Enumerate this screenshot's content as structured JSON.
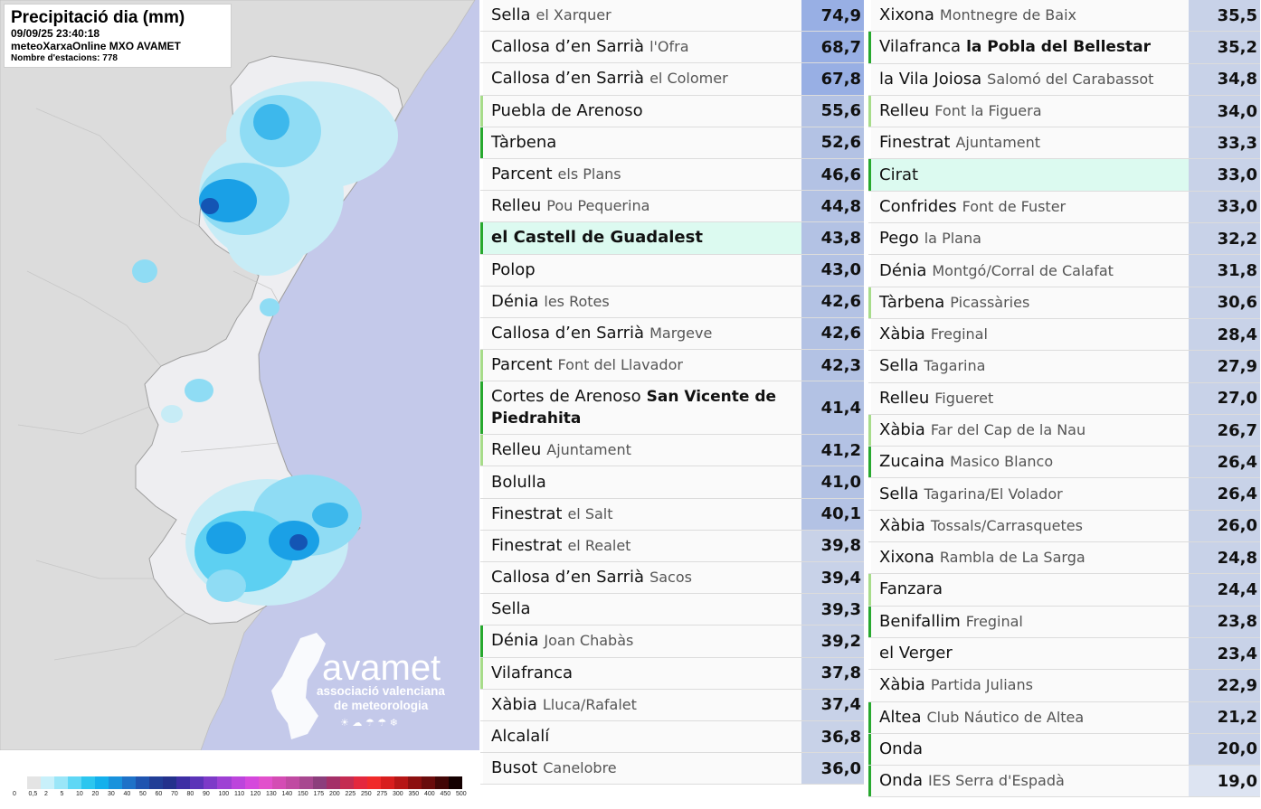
{
  "map": {
    "title": "Precipitació dia (mm)",
    "datetime": "09/09/25 23:40:18",
    "source": "meteoXarxaOnline MXO AVAMET",
    "stations": "Nombre d'estacions: 778",
    "logo_text": "avamet",
    "logo_sub1": "associació valenciana",
    "logo_sub2": "de meteorologia",
    "colors": {
      "sea": "#c4c9ea",
      "land": "#dcdcdc",
      "region": "#eeeef1",
      "rain_light": "#c7ecf6",
      "rain_mid": "#5dd0f2",
      "rain_strong": "#1aa0e6",
      "rain_heavy": "#1455b4"
    },
    "legend_colors": [
      "#ffffff",
      "#e4e4e4",
      "#c8f0fa",
      "#9ae6f8",
      "#5fd7f5",
      "#2cc6ef",
      "#14b0ec",
      "#1992dc",
      "#1e72c8",
      "#1f54b0",
      "#213e96",
      "#23318c",
      "#3d2ea4",
      "#5b34b8",
      "#7d3ac8",
      "#9e40d4",
      "#bc44dc",
      "#d548dc",
      "#e250cc",
      "#d44cb4",
      "#c04aa2",
      "#a84890",
      "#8c3e7c",
      "#a43068",
      "#c42c52",
      "#e4283e",
      "#f02a2a",
      "#d81e1e",
      "#b61616",
      "#8c1010",
      "#6a0c0c",
      "#420606",
      "#140000"
    ],
    "legend_labels": [
      "0",
      "0,5",
      "2",
      "5",
      "10",
      "20",
      "30",
      "40",
      "50",
      "60",
      "70",
      "80",
      "90",
      "100",
      "110",
      "120",
      "130",
      "140",
      "150",
      "175",
      "200",
      "225",
      "250",
      "275",
      "300",
      "350",
      "400",
      "450",
      "500"
    ]
  },
  "table_left": [
    {
      "primary": "Sella",
      "secondary": "el Xarquer",
      "value": "74,9",
      "mark": "none",
      "hl": false,
      "val_color": "#98afe4"
    },
    {
      "primary": "Callosa d’en Sarrià",
      "secondary": "l'Ofra",
      "value": "68,7",
      "mark": "none",
      "hl": false,
      "val_color": "#98afe4"
    },
    {
      "primary": "Callosa d’en Sarrià",
      "secondary": "el Colomer",
      "value": "67,8",
      "mark": "none",
      "hl": false,
      "val_color": "#98afe4"
    },
    {
      "primary": "Puebla de Arenoso",
      "secondary": "",
      "value": "55,6",
      "mark": "light",
      "hl": false,
      "val_color": "#b3c2e4"
    },
    {
      "primary": "Tàrbena",
      "secondary": "",
      "value": "52,6",
      "mark": "dark",
      "hl": false,
      "val_color": "#b3c2e4"
    },
    {
      "primary": "Parcent",
      "secondary": "els Plans",
      "value": "46,6",
      "mark": "none",
      "hl": false,
      "val_color": "#b3c2e4"
    },
    {
      "primary": "Relleu",
      "secondary": "Pou Pequerina",
      "value": "44,8",
      "mark": "none",
      "hl": false,
      "val_color": "#b3c2e4"
    },
    {
      "primary": "el Castell de Guadalest",
      "secondary": "",
      "value": "43,8",
      "mark": "dark",
      "hl": true,
      "bold": true,
      "val_color": "#b3c2e4"
    },
    {
      "primary": "Polop",
      "secondary": "",
      "value": "43,0",
      "mark": "none",
      "hl": false,
      "val_color": "#b3c2e4"
    },
    {
      "primary": "Dénia",
      "secondary": "les Rotes",
      "value": "42,6",
      "mark": "none",
      "hl": false,
      "val_color": "#b3c2e4"
    },
    {
      "primary": "Callosa d’en Sarrià",
      "secondary": "Margeve",
      "value": "42,6",
      "mark": "none",
      "hl": false,
      "val_color": "#b3c2e4"
    },
    {
      "primary": "Parcent",
      "secondary": "Font del Llavador",
      "value": "42,3",
      "mark": "light",
      "hl": false,
      "val_color": "#b3c2e4"
    },
    {
      "primary": "Cortes de Arenoso",
      "secondary": "San Vicente de Piedrahita",
      "value": "41,4",
      "mark": "dark",
      "hl": false,
      "sec_bold": true,
      "tall": true,
      "val_color": "#b3c2e4"
    },
    {
      "primary": "Relleu",
      "secondary": "Ajuntament",
      "value": "41,2",
      "mark": "light",
      "hl": false,
      "val_color": "#b3c2e4"
    },
    {
      "primary": "Bolulla",
      "secondary": "",
      "value": "41,0",
      "mark": "none",
      "hl": false,
      "val_color": "#b3c2e4"
    },
    {
      "primary": "Finestrat",
      "secondary": "el Salt",
      "value": "40,1",
      "mark": "none",
      "hl": false,
      "val_color": "#b3c2e4"
    },
    {
      "primary": "Finestrat",
      "secondary": "el Realet",
      "value": "39,8",
      "mark": "none",
      "hl": false,
      "val_color": "#c8d2e8"
    },
    {
      "primary": "Callosa d’en Sarrià",
      "secondary": "Sacos",
      "value": "39,4",
      "mark": "none",
      "hl": false,
      "val_color": "#c8d2e8"
    },
    {
      "primary": "Sella",
      "secondary": "",
      "value": "39,3",
      "mark": "none",
      "hl": false,
      "val_color": "#c8d2e8"
    },
    {
      "primary": "Dénia",
      "secondary": "Joan Chabàs",
      "value": "39,2",
      "mark": "dark",
      "hl": false,
      "val_color": "#c8d2e8"
    },
    {
      "primary": "Vilafranca",
      "secondary": "",
      "value": "37,8",
      "mark": "light",
      "hl": false,
      "val_color": "#c8d2e8"
    },
    {
      "primary": "Xàbia",
      "secondary": "Lluca/Rafalet",
      "value": "37,4",
      "mark": "none",
      "hl": false,
      "val_color": "#c8d2e8"
    },
    {
      "primary": "Alcalalí",
      "secondary": "",
      "value": "36,8",
      "mark": "none",
      "hl": false,
      "val_color": "#c8d2e8"
    },
    {
      "primary": "Busot",
      "secondary": "Canelobre",
      "value": "36,0",
      "mark": "none",
      "hl": false,
      "val_color": "#c8d2e8"
    }
  ],
  "table_right": [
    {
      "primary": "Xixona",
      "secondary": "Montnegre de Baix",
      "value": "35,5",
      "mark": "none",
      "hl": false,
      "val_color": "#c8d2e8"
    },
    {
      "primary": "Vilafranca",
      "secondary": "la Pobla del Bellestar",
      "value": "35,2",
      "mark": "dark",
      "hl": false,
      "sec_bold": true,
      "val_color": "#c8d2e8"
    },
    {
      "primary": "la Vila Joiosa",
      "secondary": "Salomó del Carabassot",
      "value": "34,8",
      "mark": "none",
      "hl": false,
      "val_color": "#c8d2e8"
    },
    {
      "primary": "Relleu",
      "secondary": "Font la Figuera",
      "value": "34,0",
      "mark": "light",
      "hl": false,
      "val_color": "#c8d2e8"
    },
    {
      "primary": "Finestrat",
      "secondary": "Ajuntament",
      "value": "33,3",
      "mark": "none",
      "hl": false,
      "val_color": "#c8d2e8"
    },
    {
      "primary": "Cirat",
      "secondary": "",
      "value": "33,0",
      "mark": "dark",
      "hl": true,
      "val_color": "#c8d2e8"
    },
    {
      "primary": "Confrides",
      "secondary": "Font de Fuster",
      "value": "33,0",
      "mark": "none",
      "hl": false,
      "val_color": "#c8d2e8"
    },
    {
      "primary": "Pego",
      "secondary": "la Plana",
      "value": "32,2",
      "mark": "none",
      "hl": false,
      "val_color": "#c8d2e8"
    },
    {
      "primary": "Dénia",
      "secondary": "Montgó/Corral de Calafat",
      "value": "31,8",
      "mark": "none",
      "hl": false,
      "val_color": "#c8d2e8"
    },
    {
      "primary": "Tàrbena",
      "secondary": "Picassàries",
      "value": "30,6",
      "mark": "light",
      "hl": false,
      "val_color": "#c8d2e8"
    },
    {
      "primary": "Xàbia",
      "secondary": "Freginal",
      "value": "28,4",
      "mark": "none",
      "hl": false,
      "val_color": "#c8d2e8"
    },
    {
      "primary": "Sella",
      "secondary": "Tagarina",
      "value": "27,9",
      "mark": "none",
      "hl": false,
      "val_color": "#c8d2e8"
    },
    {
      "primary": "Relleu",
      "secondary": "Figueret",
      "value": "27,0",
      "mark": "none",
      "hl": false,
      "val_color": "#c8d2e8"
    },
    {
      "primary": "Xàbia",
      "secondary": "Far del Cap de la Nau",
      "value": "26,7",
      "mark": "light",
      "hl": false,
      "val_color": "#c8d2e8"
    },
    {
      "primary": "Zucaina",
      "secondary": "Masico Blanco",
      "value": "26,4",
      "mark": "dark",
      "hl": false,
      "val_color": "#c8d2e8"
    },
    {
      "primary": "Sella",
      "secondary": "Tagarina/El Volador",
      "value": "26,4",
      "mark": "none",
      "hl": false,
      "val_color": "#c8d2e8"
    },
    {
      "primary": "Xàbia",
      "secondary": "Tossals/Carrasquetes",
      "value": "26,0",
      "mark": "none",
      "hl": false,
      "val_color": "#c8d2e8"
    },
    {
      "primary": "Xixona",
      "secondary": "Rambla de La Sarga",
      "value": "24,8",
      "mark": "none",
      "hl": false,
      "val_color": "#c8d2e8"
    },
    {
      "primary": "Fanzara",
      "secondary": "",
      "value": "24,4",
      "mark": "light",
      "hl": false,
      "val_color": "#c8d2e8"
    },
    {
      "primary": "Benifallim",
      "secondary": "Freginal",
      "value": "23,8",
      "mark": "dark",
      "hl": false,
      "val_color": "#c8d2e8"
    },
    {
      "primary": "el Verger",
      "secondary": "",
      "value": "23,4",
      "mark": "none",
      "hl": false,
      "val_color": "#c8d2e8"
    },
    {
      "primary": "Xàbia",
      "secondary": "Partida Julians",
      "value": "22,9",
      "mark": "none",
      "hl": false,
      "val_color": "#c8d2e8"
    },
    {
      "primary": "Altea",
      "secondary": "Club Náutico de Altea",
      "value": "21,2",
      "mark": "dark",
      "hl": false,
      "val_color": "#c8d2e8"
    },
    {
      "primary": "Onda",
      "secondary": "",
      "value": "20,0",
      "mark": "dark",
      "hl": false,
      "val_color": "#c8d2e8"
    },
    {
      "primary": "Onda",
      "secondary": "IES Serra d'Espadà",
      "value": "19,0",
      "mark": "dark",
      "hl": false,
      "val_color": "#dde4f2"
    }
  ]
}
